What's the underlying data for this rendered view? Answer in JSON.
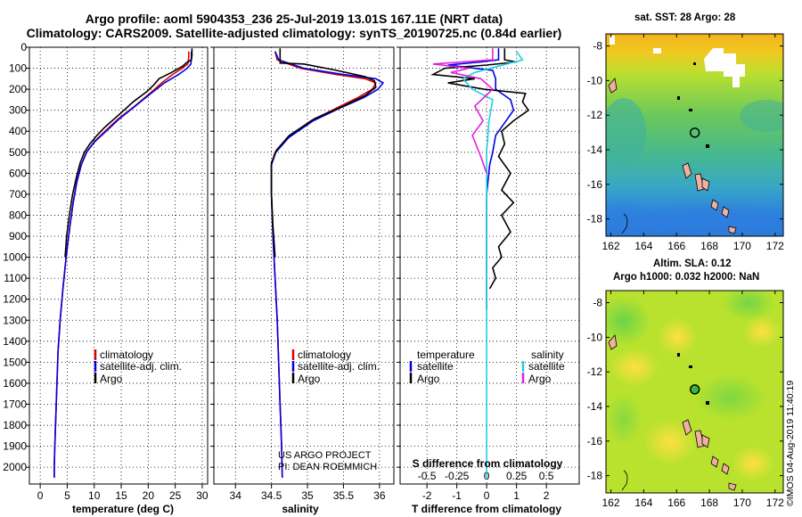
{
  "header": {
    "title_line1": "Argo profile: aoml 5904353_236 25-Jul-2019 13.01S 167.11E (NRT data)",
    "title_line2": "Climatology: CARS2009. Satellite-adjusted climatology: synTS_20190725.nc (0.84d earlier)"
  },
  "colors": {
    "climatology": "#e00000",
    "satellite": "#0000e0",
    "argo": "#000000",
    "argo_salinity_diff": "#e020e0",
    "satellite_salinity_diff": "#20d0e0"
  },
  "chart_data": [
    {
      "type": "line",
      "name": "temperature",
      "xlabel": "temperature (deg C)",
      "ylabel": "",
      "xlim": [
        -2,
        31
      ],
      "ylim": [
        2080,
        0
      ],
      "xticks": [
        "0",
        "5",
        "10",
        "15",
        "20",
        "25",
        "30"
      ],
      "xtick_values": [
        0,
        5,
        10,
        15,
        20,
        25,
        30
      ],
      "yticks": [
        "0",
        "100",
        "200",
        "300",
        "400",
        "500",
        "600",
        "700",
        "800",
        "900",
        "1000",
        "1100",
        "1200",
        "1300",
        "1400",
        "1500",
        "1600",
        "1700",
        "1800",
        "1900",
        "2000"
      ],
      "ytick_values": [
        0,
        100,
        200,
        300,
        400,
        500,
        600,
        700,
        800,
        900,
        1000,
        1100,
        1200,
        1300,
        1400,
        1500,
        1600,
        1700,
        1800,
        1900,
        2000
      ],
      "legend": [
        "climatology",
        "satellite-adj. clim.",
        "Argo"
      ],
      "series": [
        {
          "name": "climatology",
          "color": "#e00000",
          "x": [
            27.5,
            27.5,
            27.3,
            26.3,
            24.5,
            22.5,
            20.3,
            17.5,
            14.5,
            12.0,
            10.0,
            8.6,
            7.6,
            6.8,
            6.1,
            5.5,
            4.8,
            4.2,
            3.7,
            3.3,
            3.1,
            2.9,
            2.7,
            2.6,
            2.6
          ],
          "y": [
            20,
            50,
            80,
            100,
            130,
            170,
            220,
            280,
            340,
            400,
            450,
            500,
            560,
            640,
            740,
            850,
            1000,
            1150,
            1300,
            1450,
            1600,
            1750,
            1900,
            2000,
            2050
          ]
        },
        {
          "name": "satellite-adj. clim.",
          "color": "#0000e0",
          "x": [
            28.0,
            28.0,
            27.9,
            27.2,
            25.6,
            23.0,
            20.5,
            17.6,
            14.7,
            12.2,
            10.1,
            8.6,
            7.6,
            6.8,
            6.1,
            5.5,
            4.8,
            4.2,
            3.7,
            3.3,
            3.1,
            2.9,
            2.7,
            2.6,
            2.6
          ],
          "y": [
            20,
            50,
            80,
            100,
            130,
            170,
            220,
            280,
            340,
            400,
            450,
            500,
            560,
            640,
            740,
            850,
            1000,
            1150,
            1300,
            1450,
            1600,
            1750,
            1900,
            2000,
            2050
          ]
        },
        {
          "name": "Argo",
          "color": "#000000",
          "x": [
            28.1,
            28.1,
            28.0,
            27.0,
            26.4,
            25.0,
            24.3,
            22.0,
            21.0,
            19.8,
            17.2,
            15.5,
            14.2,
            12.0,
            10.5,
            9.2,
            8.2,
            7.4,
            6.7,
            6.0,
            5.4,
            4.9,
            4.6
          ],
          "y": [
            5,
            40,
            60,
            75,
            90,
            110,
            120,
            150,
            180,
            210,
            260,
            300,
            330,
            380,
            420,
            460,
            500,
            550,
            620,
            700,
            800,
            900,
            1000
          ]
        }
      ]
    },
    {
      "type": "line",
      "name": "salinity",
      "xlabel": "salinity",
      "xlim": [
        33.7,
        36.2
      ],
      "ylim": [
        2080,
        0
      ],
      "xticks": [
        "34",
        "34.5",
        "35",
        "35.5",
        "36"
      ],
      "xtick_values": [
        34,
        34.5,
        35,
        35.5,
        36
      ],
      "legend": [
        "climatology",
        "satellite-adj. clim.",
        "Argo"
      ],
      "annotation": [
        "US ARGO PROJECT",
        "PI: DEAN ROEMMICH"
      ],
      "series": [
        {
          "name": "climatology",
          "color": "#e00000",
          "x": [
            34.55,
            34.58,
            34.9,
            35.4,
            35.8,
            35.95,
            35.9,
            35.7,
            35.4,
            35.05,
            34.72,
            34.55,
            34.5,
            34.5,
            34.52,
            34.55,
            34.58,
            34.6,
            34.62,
            34.64,
            34.65
          ],
          "y": [
            20,
            60,
            100,
            130,
            150,
            170,
            200,
            240,
            290,
            350,
            430,
            500,
            560,
            700,
            900,
            1100,
            1300,
            1500,
            1700,
            1900,
            2050
          ]
        },
        {
          "name": "satellite-adj. clim.",
          "color": "#0000e0",
          "x": [
            34.55,
            34.6,
            34.95,
            35.5,
            35.95,
            36.05,
            35.98,
            35.78,
            35.45,
            35.08,
            34.74,
            34.56,
            34.5,
            34.5,
            34.52,
            34.55,
            34.58,
            34.6,
            34.62,
            34.64,
            34.65
          ],
          "y": [
            20,
            60,
            100,
            130,
            150,
            170,
            200,
            240,
            290,
            350,
            430,
            500,
            560,
            700,
            900,
            1100,
            1300,
            1500,
            1700,
            1900,
            2050
          ]
        },
        {
          "name": "Argo",
          "color": "#000000",
          "x": [
            34.62,
            34.62,
            34.95,
            35.4,
            35.8,
            35.93,
            35.95,
            35.8,
            35.5,
            35.1,
            34.75,
            34.57,
            34.5,
            34.5,
            34.52,
            34.55
          ],
          "y": [
            5,
            75,
            80,
            110,
            140,
            160,
            190,
            230,
            280,
            340,
            420,
            490,
            550,
            700,
            850,
            1000
          ]
        }
      ]
    },
    {
      "type": "line",
      "name": "differences",
      "xlabel": "T difference from climatology",
      "xlabel_top": "S difference from climatology",
      "xlim": [
        -2.9,
        3.1
      ],
      "ylim": [
        2080,
        0
      ],
      "xticks": [
        "-2",
        "-1",
        "0",
        "1",
        "2"
      ],
      "xtick_values": [
        -2,
        -1,
        0,
        1,
        2
      ],
      "top_ticks": [
        "-0.5",
        "-0.25",
        "0",
        "0.25",
        "0.5"
      ],
      "top_tick_values": [
        -0.5,
        -0.25,
        0,
        0.25,
        0.5
      ],
      "legend_headers": [
        "temperature",
        "salinity"
      ],
      "legend": [
        "satellite",
        "Argo",
        "satellite",
        "Argo"
      ],
      "series": [
        {
          "name": "satellite temperature",
          "color": "#0000e0",
          "x": [
            0.4,
            0.4,
            -0.2,
            -1.3,
            0.2,
            0.3,
            0.3,
            0.8,
            0.9,
            0.6,
            0.3,
            0.2,
            0.1,
            0.0,
            0.0,
            0.0,
            0.0
          ],
          "y": [
            5,
            60,
            70,
            85,
            110,
            150,
            200,
            250,
            300,
            360,
            420,
            500,
            560,
            700,
            900,
            1100,
            1250
          ]
        },
        {
          "name": "Argo temperature",
          "color": "#000000",
          "x": [
            0.6,
            0.6,
            1.0,
            0.0,
            -1.4,
            -1.8,
            -0.4,
            -1.3,
            -0.1,
            1.3,
            1.2,
            1.4,
            0.9,
            0.5,
            0.6,
            0.4,
            0.8,
            0.5,
            0.9,
            0.5,
            0.8,
            0.4,
            0.5,
            0.2,
            0.3,
            0.1
          ],
          "y": [
            5,
            60,
            70,
            85,
            100,
            130,
            150,
            170,
            200,
            220,
            260,
            300,
            350,
            400,
            460,
            520,
            600,
            680,
            740,
            800,
            880,
            950,
            1000,
            1050,
            1100,
            1150
          ]
        },
        {
          "name": "satellite salinity",
          "color": "#20d0e0",
          "x": [
            0.25,
            0.3,
            0.1,
            -0.1,
            -0.2,
            -0.12,
            0.05,
            0.02,
            0.0,
            0.0,
            0.0,
            0.0
          ],
          "y": [
            20,
            60,
            90,
            120,
            150,
            200,
            250,
            350,
            500,
            800,
            1200,
            2050
          ]
        },
        {
          "name": "Argo salinity",
          "color": "#e020e0",
          "x": [
            0.05,
            0.05,
            -0.45,
            -0.15,
            -0.3,
            -0.05,
            0.05,
            -0.1,
            -0.03,
            -0.12,
            -0.05,
            0.0
          ],
          "y": [
            5,
            60,
            80,
            100,
            120,
            150,
            200,
            280,
            350,
            420,
            520,
            600
          ]
        }
      ]
    }
  ],
  "maps": {
    "sst": {
      "title": "sat. SST: 28 Argo: 28",
      "yticks": [
        "-8",
        "-10",
        "-12",
        "-14",
        "-16",
        "-18"
      ],
      "ytick_values": [
        -8,
        -10,
        -12,
        -14,
        -16,
        -18
      ],
      "xticks": [
        "162",
        "164",
        "166",
        "168",
        "170",
        "172"
      ],
      "xtick_values": [
        162,
        164,
        166,
        168,
        170,
        172
      ]
    },
    "sla": {
      "title_line1": "Altim. SLA: 0.12",
      "title_line2": "Argo h1000: 0.032 h2000: NaN",
      "yticks": [
        "-8",
        "-10",
        "-12",
        "-14",
        "-16",
        "-18"
      ],
      "ytick_values": [
        -8,
        -10,
        -12,
        -14,
        -16,
        -18
      ],
      "xticks": [
        "162",
        "164",
        "166",
        "168",
        "170",
        "172"
      ],
      "xtick_values": [
        162,
        164,
        166,
        168,
        170,
        172
      ]
    },
    "argo_position": {
      "lon": 167.11,
      "lat": -13.01
    }
  },
  "credit": "©IMOS 04-Aug-2019 11:40:19"
}
